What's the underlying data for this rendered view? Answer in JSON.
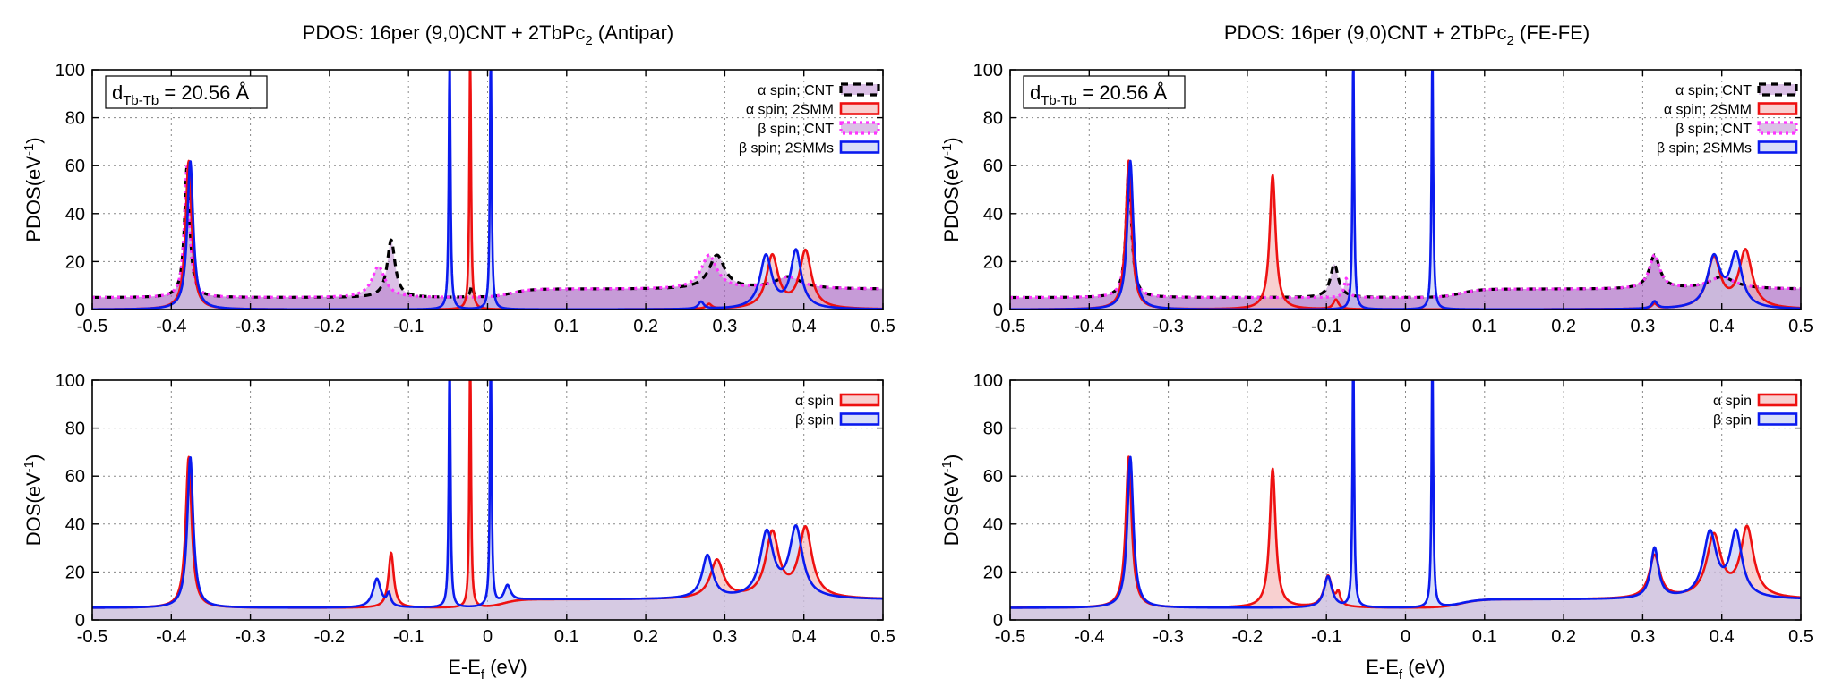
{
  "figure": {
    "left_title": "PDOS: 16per (9,0)CNT + 2TbPc",
    "left_title_suffix": " (Antipar)",
    "right_title": "PDOS: 16per (9,0)CNT + 2TbPc",
    "right_title_suffix": " (FE-FE)",
    "title_subscript": "2",
    "distance_label_prefix": "d",
    "distance_label_sub": "Tb-Tb",
    "distance_label_value": " = 20.56 Å",
    "pdos_ylabel": "PDOS(eV",
    "dos_ylabel": "DOS(eV",
    "ylabel_sup": "-1",
    "ylabel_close": ")",
    "xlabel": "E-E",
    "xlabel_sub": "f",
    "xlabel_unit": " (eV)"
  },
  "colors": {
    "alpha_line": "#ee1111",
    "alpha_fill": "#f4b0b0",
    "beta_line": "#0a1aee",
    "beta_fill": "#b9c5f2",
    "cnt_alpha_line": "#000000",
    "cnt_beta_line": "#ff33ff",
    "cnt_fill": "#a968c4",
    "grid": "#888888"
  },
  "chart_data": [
    {
      "type": "area",
      "panel": "top-left",
      "title": "PDOS: 16per (9,0)CNT + 2TbPc2 (Antipar)",
      "xlabel": "",
      "ylabel": "PDOS(eV-1)",
      "xlim": [
        -0.5,
        0.5
      ],
      "ylim": [
        0,
        100
      ],
      "xticks": [
        "-0.5",
        "-0.4",
        "-0.3",
        "-0.2",
        "-0.1",
        "0",
        "0.1",
        "0.2",
        "0.3",
        "0.4",
        "0.5"
      ],
      "yticks": [
        "0",
        "20",
        "40",
        "60",
        "80",
        "100"
      ],
      "grid": true,
      "legend_position": "top-right",
      "annotation": "dTb-Tb = 20.56 Å",
      "series": [
        {
          "name": "α spin; CNT",
          "style": "dashed",
          "baseline": 5,
          "peaks": [
            [
              -0.38,
              0.004,
              55
            ],
            [
              -0.122,
              0.006,
              24
            ],
            [
              -0.02,
              0.002,
              5
            ],
            [
              0.29,
              0.012,
              14
            ],
            [
              0.38,
              0.02,
              5
            ]
          ],
          "edges": [
            [
              0.03,
              0.012,
              3.5
            ]
          ]
        },
        {
          "name": "α spin; 2SMM",
          "style": "solid-filled",
          "baseline": 0,
          "peaks": [
            [
              -0.378,
              0.0045,
              62
            ],
            [
              -0.022,
              0.0012,
              110
            ],
            [
              0.36,
              0.009,
              22
            ],
            [
              0.402,
              0.009,
              24
            ],
            [
              0.28,
              0.004,
              2
            ]
          ]
        },
        {
          "name": "β spin; CNT",
          "style": "dotted",
          "baseline": 5,
          "peaks": [
            [
              -0.38,
              0.004,
              55
            ],
            [
              -0.138,
              0.01,
              13
            ],
            [
              0.28,
              0.012,
              14
            ],
            [
              0.38,
              0.02,
              5
            ]
          ],
          "edges": [
            [
              0.03,
              0.012,
              3.5
            ]
          ]
        },
        {
          "name": "β spin; 2SMMs",
          "style": "solid-filled",
          "baseline": 0,
          "peaks": [
            [
              -0.376,
              0.0045,
              62
            ],
            [
              -0.048,
              0.0012,
              110
            ],
            [
              0.004,
              0.0012,
              110
            ],
            [
              0.352,
              0.009,
              22
            ],
            [
              0.39,
              0.008,
              24
            ],
            [
              0.27,
              0.004,
              3
            ]
          ]
        }
      ]
    },
    {
      "type": "area",
      "panel": "bottom-left",
      "xlabel": "E-Ef (eV)",
      "ylabel": "DOS(eV-1)",
      "xlim": [
        -0.5,
        0.5
      ],
      "ylim": [
        0,
        100
      ],
      "xticks": [
        "-0.5",
        "-0.4",
        "-0.3",
        "-0.2",
        "-0.1",
        "0",
        "0.1",
        "0.2",
        "0.3",
        "0.4",
        "0.5"
      ],
      "yticks": [
        "0",
        "20",
        "40",
        "60",
        "80",
        "100"
      ],
      "grid": true,
      "legend_position": "top-right",
      "series": [
        {
          "name": "α spin",
          "baseline": 5,
          "peaks": [
            [
              -0.378,
              0.0045,
              63
            ],
            [
              -0.122,
              0.004,
              23
            ],
            [
              -0.022,
              0.0012,
              110
            ],
            [
              0.29,
              0.01,
              16
            ],
            [
              0.36,
              0.01,
              27
            ],
            [
              0.402,
              0.01,
              29
            ]
          ],
          "edges": [
            [
              0.02,
              0.01,
              3.5
            ]
          ]
        },
        {
          "name": "β spin",
          "baseline": 5,
          "peaks": [
            [
              -0.376,
              0.0045,
              63
            ],
            [
              -0.14,
              0.006,
              12
            ],
            [
              -0.125,
              0.003,
              5
            ],
            [
              -0.048,
              0.0012,
              110
            ],
            [
              0.004,
              0.0012,
              110
            ],
            [
              0.025,
              0.005,
              7
            ],
            [
              0.278,
              0.008,
              18
            ],
            [
              0.353,
              0.01,
              27
            ],
            [
              0.39,
              0.01,
              29
            ]
          ],
          "edges": [
            [
              0.02,
              0.01,
              3.5
            ]
          ]
        }
      ]
    },
    {
      "type": "area",
      "panel": "top-right",
      "title": "PDOS: 16per (9,0)CNT + 2TbPc2 (FE-FE)",
      "xlabel": "",
      "ylabel": "PDOS(eV-1)",
      "xlim": [
        -0.5,
        0.5
      ],
      "ylim": [
        0,
        100
      ],
      "xticks": [
        "-0.5",
        "-0.4",
        "-0.3",
        "-0.2",
        "-0.1",
        "0",
        "0.1",
        "0.2",
        "0.3",
        "0.4",
        "0.5"
      ],
      "yticks": [
        "0",
        "20",
        "40",
        "60",
        "80",
        "100"
      ],
      "grid": true,
      "legend_position": "top-right",
      "annotation": "dTb-Tb = 20.56 Å",
      "series": [
        {
          "name": "α spin; CNT",
          "style": "dashed",
          "baseline": 5,
          "peaks": [
            [
              -0.35,
              0.004,
              55
            ],
            [
              -0.09,
              0.006,
              14
            ],
            [
              0.315,
              0.008,
              14
            ],
            [
              0.4,
              0.02,
              5
            ]
          ],
          "edges": [
            [
              0.07,
              0.012,
              3.5
            ]
          ]
        },
        {
          "name": "α spin; 2SMM",
          "style": "solid-filled",
          "baseline": 0,
          "peaks": [
            [
              -0.35,
              0.0045,
              62
            ],
            [
              -0.168,
              0.0045,
              56
            ],
            [
              -0.088,
              0.004,
              4
            ],
            [
              0.39,
              0.01,
              21
            ],
            [
              0.43,
              0.01,
              24
            ],
            [
              0.315,
              0.004,
              2
            ]
          ]
        },
        {
          "name": "β spin; CNT",
          "style": "dotted",
          "baseline": 5,
          "peaks": [
            [
              -0.35,
              0.004,
              55
            ],
            [
              -0.075,
              0.003,
              8
            ],
            [
              0.315,
              0.008,
              14
            ],
            [
              0.4,
              0.02,
              5
            ]
          ],
          "edges": [
            [
              0.07,
              0.012,
              3.5
            ]
          ]
        },
        {
          "name": "β spin; 2SMMs",
          "style": "solid-filled",
          "baseline": 0,
          "peaks": [
            [
              -0.348,
              0.0045,
              62
            ],
            [
              -0.066,
              0.0012,
              110
            ],
            [
              0.034,
              0.0012,
              110
            ],
            [
              0.39,
              0.01,
              21
            ],
            [
              0.418,
              0.009,
              22
            ],
            [
              0.315,
              0.004,
              3
            ]
          ]
        }
      ]
    },
    {
      "type": "area",
      "panel": "bottom-right",
      "xlabel": "E-Ef (eV)",
      "ylabel": "DOS(eV-1)",
      "xlim": [
        -0.5,
        0.5
      ],
      "ylim": [
        0,
        100
      ],
      "xticks": [
        "-0.5",
        "-0.4",
        "-0.3",
        "-0.2",
        "-0.1",
        "0",
        "0.1",
        "0.2",
        "0.3",
        "0.4",
        "0.5"
      ],
      "yticks": [
        "0",
        "20",
        "40",
        "60",
        "80",
        "100"
      ],
      "grid": true,
      "legend_position": "top-right",
      "series": [
        {
          "name": "α spin",
          "baseline": 5,
          "peaks": [
            [
              -0.35,
              0.0045,
              63
            ],
            [
              -0.168,
              0.0045,
              58
            ],
            [
              -0.098,
              0.006,
              13
            ],
            [
              -0.085,
              0.003,
              5
            ],
            [
              0.315,
              0.008,
              18
            ],
            [
              0.39,
              0.011,
              26
            ],
            [
              0.432,
              0.01,
              29
            ]
          ],
          "edges": [
            [
              0.07,
              0.012,
              3.5
            ]
          ]
        },
        {
          "name": "β spin",
          "baseline": 5,
          "peaks": [
            [
              -0.348,
              0.0045,
              63
            ],
            [
              -0.098,
              0.006,
              13
            ],
            [
              -0.066,
              0.0012,
              110
            ],
            [
              0.034,
              0.0012,
              110
            ],
            [
              0.315,
              0.006,
              21
            ],
            [
              0.385,
              0.01,
              27
            ],
            [
              0.418,
              0.009,
              27
            ]
          ],
          "edges": [
            [
              0.07,
              0.012,
              3.5
            ]
          ]
        }
      ]
    }
  ]
}
